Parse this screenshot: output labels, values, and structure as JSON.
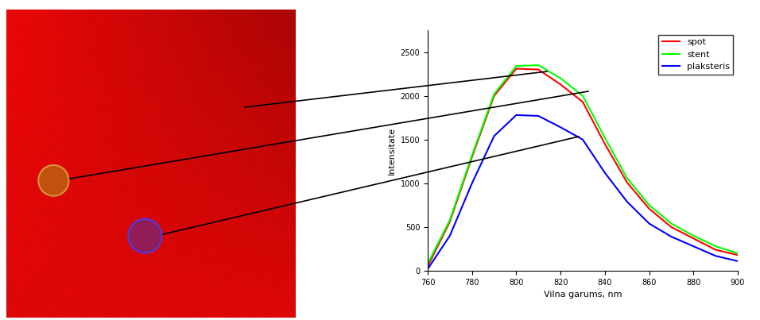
{
  "chart_data": {
    "type": "line",
    "x_label": "Vilna garums, nm",
    "y_label": "Intensitate",
    "x": [
      760,
      770,
      780,
      790,
      800,
      810,
      820,
      830,
      840,
      850,
      860,
      870,
      880,
      890,
      900
    ],
    "series": [
      {
        "name": "spot",
        "color": "#ff0000",
        "values": [
          50,
          560,
          1300,
          2000,
          2310,
          2300,
          2130,
          1930,
          1450,
          1010,
          710,
          500,
          370,
          240,
          180
        ]
      },
      {
        "name": "stent",
        "color": "#00ff00",
        "values": [
          80,
          580,
          1320,
          2020,
          2340,
          2350,
          2200,
          2000,
          1520,
          1060,
          750,
          540,
          400,
          280,
          200
        ]
      },
      {
        "name": "plaksteris",
        "color": "#0000ff",
        "values": [
          20,
          400,
          1000,
          1540,
          1780,
          1770,
          1640,
          1500,
          1120,
          790,
          540,
          390,
          280,
          170,
          110
        ]
      }
    ],
    "xlim": [
      760,
      900
    ],
    "xticks": [
      760,
      780,
      800,
      820,
      840,
      860,
      880,
      900
    ],
    "ylim": [
      0,
      2750
    ],
    "yticks": [
      0,
      500,
      1000,
      1500,
      2000,
      2500
    ],
    "legend": "upper right"
  }
}
